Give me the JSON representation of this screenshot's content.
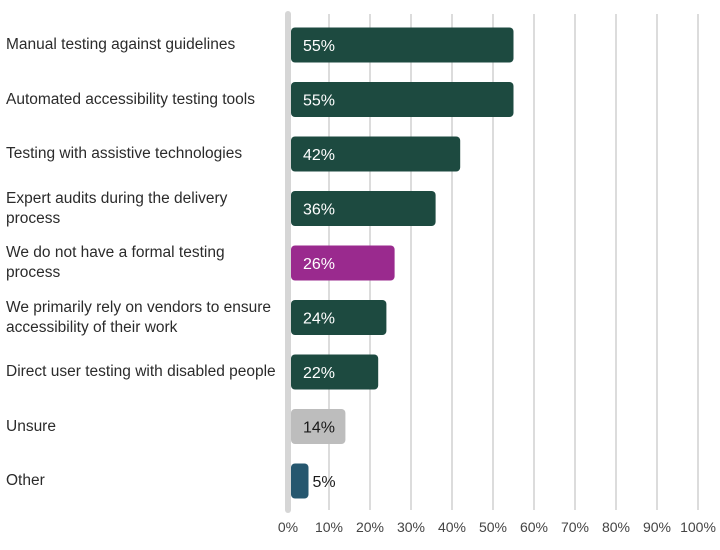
{
  "chart_data": {
    "type": "bar",
    "orientation": "horizontal",
    "categories": [
      "Manual testing against guidelines",
      "Automated accessibility testing tools",
      "Testing with assistive technologies",
      "Expert audits during the delivery process",
      "We do not have a formal testing process",
      "We primarily rely on vendors to ensure accessibility of their work",
      "Direct user testing with disabled people",
      "Unsure",
      "Other"
    ],
    "values": [
      55,
      55,
      42,
      36,
      26,
      24,
      22,
      14,
      5
    ],
    "data_labels": [
      "55%",
      "55%",
      "42%",
      "36%",
      "26%",
      "24%",
      "22%",
      "14%",
      "5%"
    ],
    "bar_colors": [
      "#1d4a40",
      "#1d4a40",
      "#1d4a40",
      "#1d4a40",
      "#9a2a8e",
      "#1d4a40",
      "#1d4a40",
      "#bdbdbd",
      "#26576f"
    ],
    "label_colors": [
      "#ffffff",
      "#ffffff",
      "#ffffff",
      "#ffffff",
      "#ffffff",
      "#ffffff",
      "#ffffff",
      "#1a1a1a",
      "#1a1a1a"
    ],
    "xlim": [
      0,
      100
    ],
    "xticks": [
      0,
      10,
      20,
      30,
      40,
      50,
      60,
      70,
      80,
      90,
      100
    ],
    "xtick_labels": [
      "0%",
      "10%",
      "20%",
      "30%",
      "40%",
      "50%",
      "60%",
      "70%",
      "80%",
      "90%",
      "100%"
    ],
    "grid": true,
    "title": "",
    "xlabel": "",
    "ylabel": ""
  }
}
